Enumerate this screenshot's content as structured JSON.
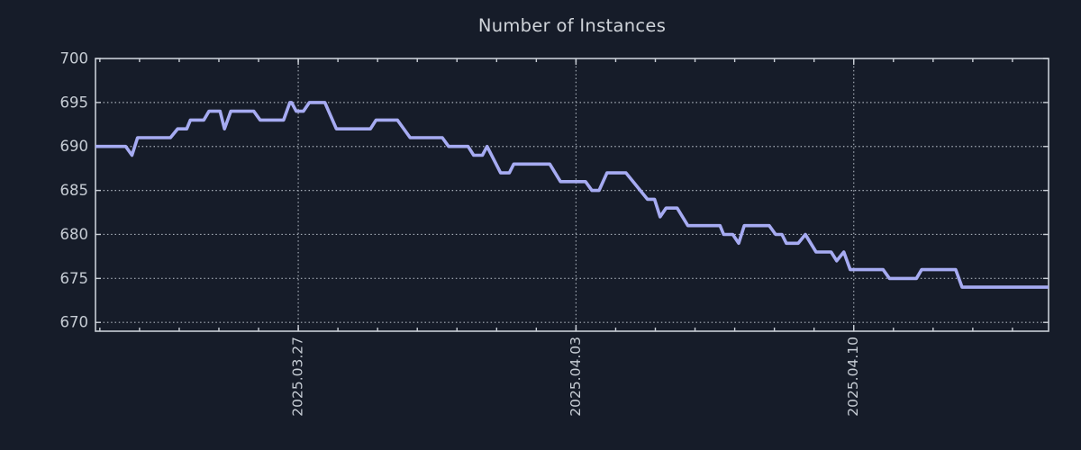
{
  "colors": {
    "background": "#161c29",
    "line": "#a6abf2",
    "grid": "#a8afb9",
    "axis": "#c9ced6",
    "tick_label": "#c6ccd4",
    "title": "#d0d4da"
  },
  "chart_data": {
    "type": "line",
    "title": "Number of Instances",
    "xlabel": "",
    "ylabel": "",
    "legend": "none",
    "grid": "dotted",
    "x_unit": "days since 2025-03-22",
    "xlim": [
      -0.11,
      23.91
    ],
    "ylim": [
      669,
      700
    ],
    "yticks": [
      700,
      695,
      690,
      685,
      680,
      675,
      670
    ],
    "xticks_major": [
      {
        "day": 5,
        "label": "2025.03.27"
      },
      {
        "day": 12,
        "label": "2025.04.03"
      },
      {
        "day": 19,
        "label": "2025.04.10"
      }
    ],
    "xticks_minor_days": [
      0,
      1,
      2,
      3,
      4,
      5,
      6,
      7,
      8,
      9,
      10,
      11,
      12,
      13,
      14,
      15,
      16,
      17,
      18,
      19,
      20,
      21,
      22,
      23
    ],
    "points": [
      [
        -0.11,
        690
      ],
      [
        0.65,
        690
      ],
      [
        0.81,
        689
      ],
      [
        0.95,
        691
      ],
      [
        1.78,
        691
      ],
      [
        1.96,
        692
      ],
      [
        2.19,
        692
      ],
      [
        2.28,
        693
      ],
      [
        2.62,
        693
      ],
      [
        2.75,
        694
      ],
      [
        3.03,
        694
      ],
      [
        3.14,
        692
      ],
      [
        3.3,
        694
      ],
      [
        3.88,
        694
      ],
      [
        4.04,
        693
      ],
      [
        4.63,
        693
      ],
      [
        4.79,
        695
      ],
      [
        4.83,
        695
      ],
      [
        4.95,
        694
      ],
      [
        5.13,
        694
      ],
      [
        5.28,
        695
      ],
      [
        5.67,
        695
      ],
      [
        5.96,
        692
      ],
      [
        6.82,
        692
      ],
      [
        6.96,
        693
      ],
      [
        7.5,
        693
      ],
      [
        7.82,
        691
      ],
      [
        8.63,
        691
      ],
      [
        8.79,
        690
      ],
      [
        9.28,
        690
      ],
      [
        9.42,
        689
      ],
      [
        9.64,
        689
      ],
      [
        9.76,
        690
      ],
      [
        10.1,
        687
      ],
      [
        10.32,
        687
      ],
      [
        10.43,
        688
      ],
      [
        11.34,
        688
      ],
      [
        11.61,
        686
      ],
      [
        12.24,
        686
      ],
      [
        12.4,
        685
      ],
      [
        12.58,
        685
      ],
      [
        12.78,
        687
      ],
      [
        13.26,
        687
      ],
      [
        13.8,
        684
      ],
      [
        13.98,
        684
      ],
      [
        14.12,
        682
      ],
      [
        14.27,
        683
      ],
      [
        14.55,
        683
      ],
      [
        14.82,
        681
      ],
      [
        15.63,
        681
      ],
      [
        15.72,
        680
      ],
      [
        15.95,
        680
      ],
      [
        16.1,
        679
      ],
      [
        16.24,
        681
      ],
      [
        16.87,
        681
      ],
      [
        17.03,
        680
      ],
      [
        17.19,
        680
      ],
      [
        17.3,
        679
      ],
      [
        17.6,
        679
      ],
      [
        17.78,
        680
      ],
      [
        18.05,
        678
      ],
      [
        18.43,
        678
      ],
      [
        18.57,
        677
      ],
      [
        18.75,
        678
      ],
      [
        18.91,
        676
      ],
      [
        19.74,
        676
      ],
      [
        19.9,
        675
      ],
      [
        20.58,
        675
      ],
      [
        20.71,
        676
      ],
      [
        21.57,
        676
      ],
      [
        21.73,
        674
      ],
      [
        23.91,
        674
      ]
    ]
  }
}
